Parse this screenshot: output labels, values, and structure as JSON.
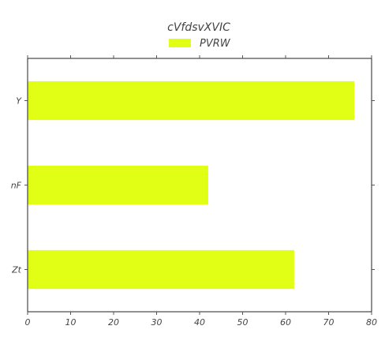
{
  "chart_data": {
    "type": "bar",
    "orientation": "horizontal",
    "title": "cVfdsvXVIC",
    "xlabel": "",
    "ylabel": "",
    "categories": [
      "Y",
      "nF",
      "Zt"
    ],
    "series": [
      {
        "name": "PVRW",
        "values": [
          76,
          42,
          62
        ],
        "color": "#e0ff14"
      }
    ],
    "xlim": [
      0,
      80
    ],
    "xticks": [
      0,
      10,
      20,
      30,
      40,
      50,
      60,
      70,
      80
    ],
    "grid": false,
    "legend_position": "top-center"
  }
}
